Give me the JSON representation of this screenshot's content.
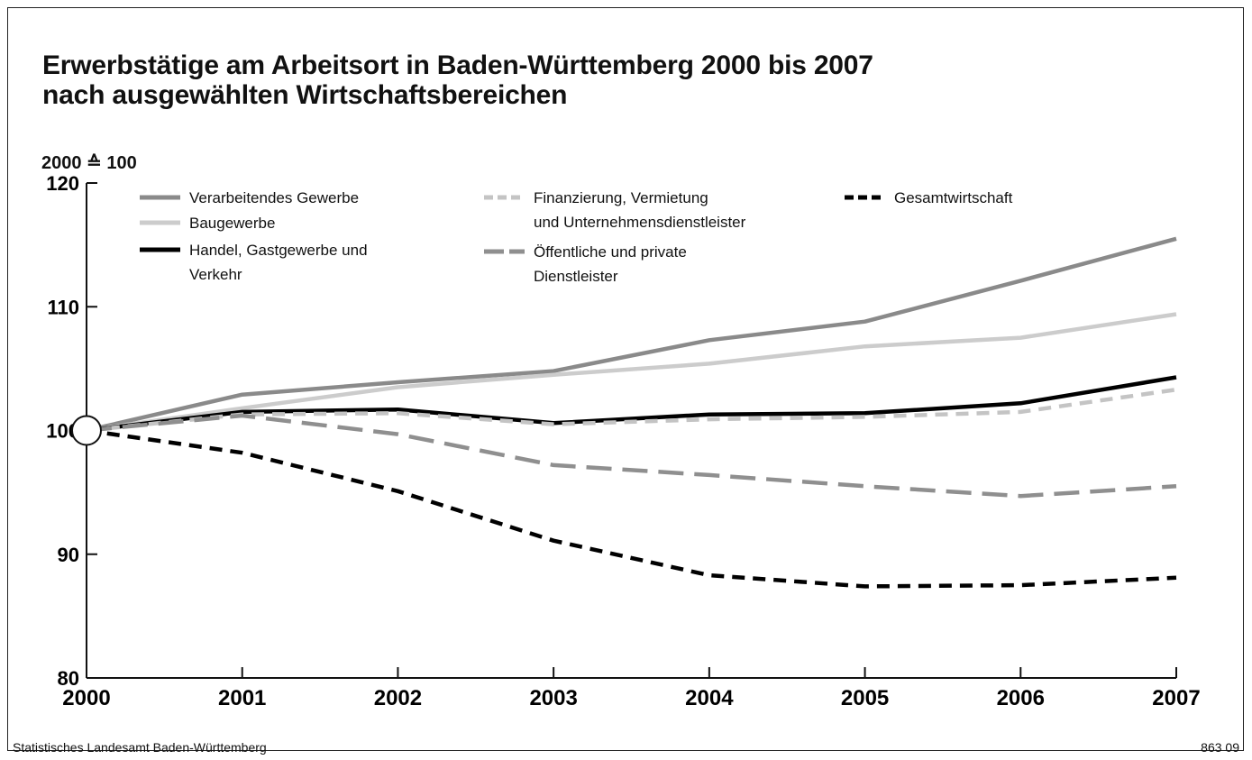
{
  "chart_data": {
    "type": "line",
    "title": "Erwerbstätige am Arbeitsort in Baden-Württemberg 2000 bis 2007",
    "subtitle": "nach ausgewählten Wirtschaftsbereichen",
    "ylabel": "2000 ≙ 100",
    "xlabel": "",
    "x": [
      "2000",
      "2001",
      "2002",
      "2003",
      "2004",
      "2005",
      "2006",
      "2007"
    ],
    "ylim": [
      80,
      120
    ],
    "yticks": [
      80,
      90,
      100,
      110,
      120
    ],
    "grid": false,
    "legend_position": "top",
    "series": [
      {
        "name": "Verarbeitendes Gewerbe",
        "color": "#8a8a8a",
        "dash": "solid",
        "values": [
          100,
          102.9,
          103.9,
          104.8,
          107.3,
          108.8,
          112.1,
          115.5
        ]
      },
      {
        "name": "Baugewerbe",
        "color": "#cccccc",
        "dash": "solid",
        "values": [
          100,
          101.8,
          103.5,
          104.5,
          105.4,
          106.8,
          107.5,
          109.4
        ]
      },
      {
        "name": "Handel, Gastgewerbe und Verkehr",
        "color": "#000000",
        "dash": "solid",
        "values": [
          100,
          101.5,
          101.7,
          100.6,
          101.3,
          101.4,
          102.2,
          104.3
        ]
      },
      {
        "name": "Finanzierung, Vermietung und Unternehmensdienstleister",
        "color": "#c4c4c4",
        "dash": "dash",
        "values": [
          100,
          101.3,
          101.4,
          100.5,
          100.9,
          101.1,
          101.5,
          103.3
        ]
      },
      {
        "name": "Öffentliche und private Dienstleister",
        "color": "#8f8f8f",
        "dash": "longdash",
        "values": [
          100,
          101.2,
          99.7,
          97.2,
          96.4,
          95.5,
          94.7,
          95.5
        ]
      },
      {
        "name": "Gesamtwirtschaft",
        "color": "#000000",
        "dash": "dash",
        "values": [
          100,
          98.2,
          95.1,
          91.1,
          88.3,
          87.4,
          87.5,
          88.1
        ]
      }
    ],
    "legend_labels": [
      [
        "Verarbeitendes Gewerbe"
      ],
      [
        "Baugewerbe"
      ],
      [
        "Handel, Gastgewerbe und",
        "Verkehr"
      ],
      [
        "Finanzierung, Vermietung",
        "und Unternehmensdienstleister"
      ],
      [
        "Öffentliche und private",
        "Dienstleister"
      ],
      [
        "Gesamtwirtschaft"
      ]
    ]
  },
  "title_line1": "Erwerbstätige am Arbeitsort in Baden-Württemberg 2000 bis 2007",
  "title_line2": "nach ausgewählten Wirtschaftsbereichen",
  "unit_label": "2000 ≙ 100",
  "footer_source": "Statistisches Landesamt Baden-Württemberg",
  "footer_code": "863 09"
}
